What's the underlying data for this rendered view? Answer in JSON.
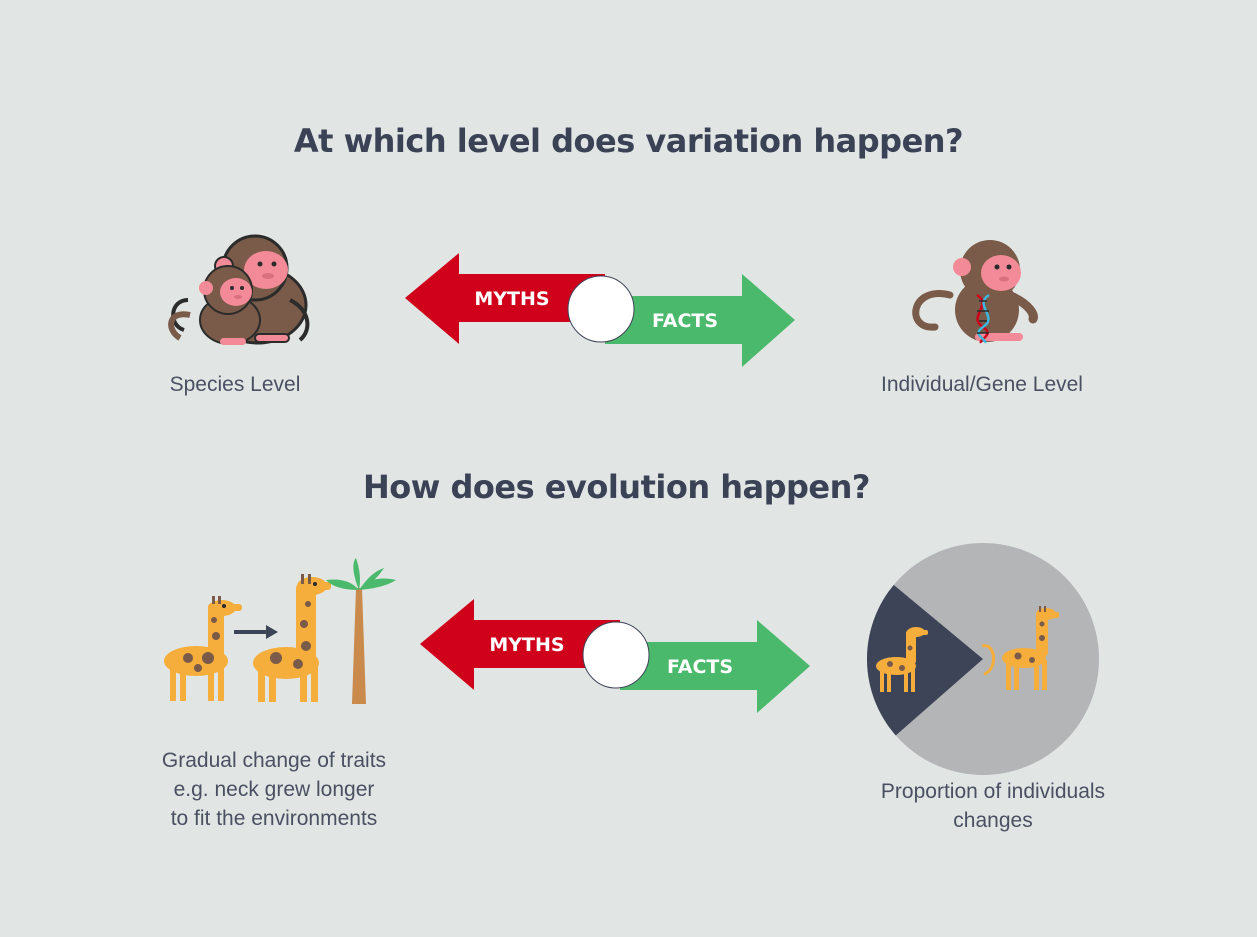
{
  "section1": {
    "question": "At which level does variation happen?",
    "myths_label": "MYTHS",
    "facts_label": "FACTS",
    "left_caption": "Species Level",
    "right_caption": "Individual/Gene Level"
  },
  "section2": {
    "question": "How does evolution happen?",
    "myths_label": "MYTHS",
    "facts_label": "FACTS",
    "left_caption_lines": [
      "Gradual change of traits",
      "e.g. neck grew longer",
      "to fit the environments"
    ],
    "right_caption_lines": [
      "Proportion of individuals",
      "changes"
    ]
  },
  "colors": {
    "background": "#e1e6e5",
    "heading": "#3b4256",
    "myths_red": "#d0021b",
    "facts_green": "#4bb96b",
    "monkey_brown": "#7a5a48",
    "monkey_pink": "#f28b97",
    "giraffe_yellow": "#f5ae3c",
    "giraffe_spots": "#7a5a48",
    "pie_grey": "#b4b5b7",
    "pie_dark": "#3e4458"
  },
  "icons": {
    "species": "monkey-group-icon",
    "individual": "monkey-dna-icon",
    "gradual": "giraffe-growth-icon",
    "proportion": "giraffe-pie-icon"
  }
}
